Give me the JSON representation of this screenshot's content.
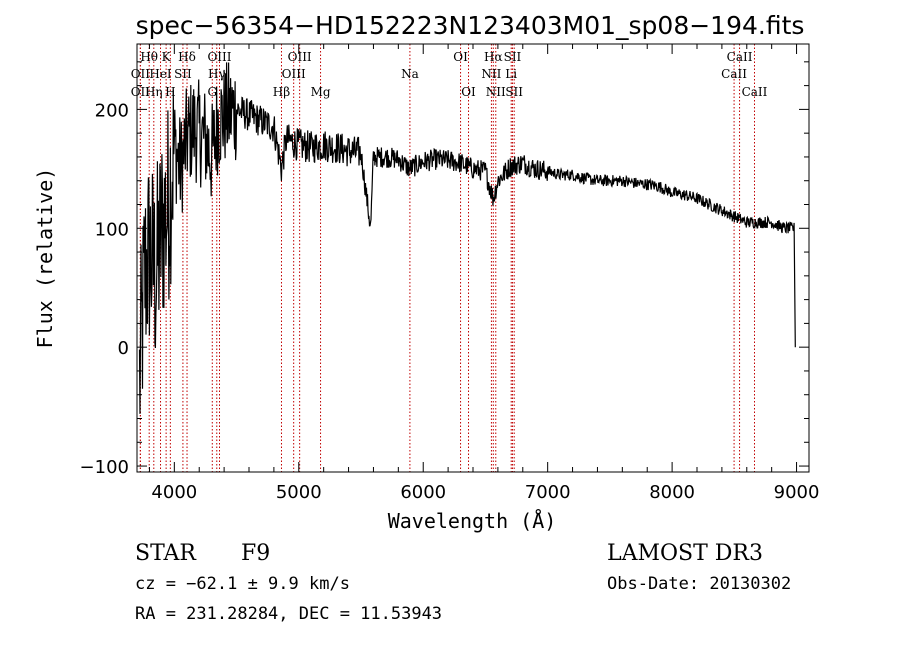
{
  "chart_data": {
    "type": "line",
    "title": "spec−56354−HD152223N123403M01_sp08−194.fits",
    "xlabel": "Wavelength (Å)",
    "ylabel": "Flux (relative)",
    "xlim": [
      3700,
      9100
    ],
    "ylim": [
      -105,
      255
    ],
    "xticks": [
      4000,
      5000,
      6000,
      7000,
      8000,
      9000
    ],
    "yticks": [
      -100,
      0,
      100,
      200
    ],
    "x_minor_step": 200,
    "y_minor_step": 20,
    "series": [
      {
        "name": "spectrum",
        "x": [
          3720,
          3760,
          3800,
          3850,
          3900,
          3950,
          4000,
          4050,
          4100,
          4150,
          4200,
          4250,
          4300,
          4350,
          4400,
          4500,
          4600,
          4700,
          4800,
          4861,
          4900,
          5000,
          5100,
          5200,
          5300,
          5400,
          5500,
          5577,
          5600,
          5700,
          5800,
          5890,
          6000,
          6100,
          6200,
          6300,
          6400,
          6500,
          6563,
          6600,
          6700,
          6800,
          6900,
          7000,
          7100,
          7200,
          7300,
          7400,
          7500,
          7600,
          7700,
          7800,
          7900,
          8000,
          8100,
          8200,
          8300,
          8400,
          8500,
          8600,
          8700,
          8800,
          8900,
          8980,
          8990
        ],
        "y": [
          -30,
          60,
          80,
          60,
          100,
          120,
          170,
          150,
          175,
          185,
          180,
          175,
          160,
          190,
          195,
          200,
          195,
          190,
          185,
          150,
          175,
          170,
          168,
          170,
          168,
          165,
          163,
          100,
          160,
          160,
          158,
          150,
          156,
          158,
          157,
          155,
          150,
          148,
          125,
          140,
          152,
          155,
          150,
          148,
          145,
          145,
          142,
          140,
          140,
          140,
          138,
          137,
          135,
          130,
          128,
          125,
          120,
          115,
          110,
          105,
          105,
          105,
          100,
          100,
          0
        ]
      }
    ],
    "line_markers": [
      {
        "label": "Hθ",
        "x": 3798,
        "row": 1
      },
      {
        "label": "OII",
        "x": 3727,
        "row": 2
      },
      {
        "label": "OII",
        "x": 3727,
        "row": 3
      },
      {
        "label": "Hη",
        "x": 3835,
        "row": 3
      },
      {
        "label": "HeI",
        "x": 3889,
        "row": 2
      },
      {
        "label": "K",
        "x": 3934,
        "row": 1
      },
      {
        "label": "H",
        "x": 3968,
        "row": 3
      },
      {
        "label": "SII",
        "x": 4069,
        "row": 2
      },
      {
        "label": "Hδ",
        "x": 4102,
        "row": 1
      },
      {
        "label": "OIII",
        "x": 4363,
        "row": 1
      },
      {
        "label": "Hγ",
        "x": 4341,
        "row": 2
      },
      {
        "label": "G",
        "x": 4305,
        "row": 3
      },
      {
        "label": "Hβ",
        "x": 4861,
        "row": 3
      },
      {
        "label": "OIII",
        "x": 4959,
        "row": 2
      },
      {
        "label": "OIII",
        "x": 5007,
        "row": 1
      },
      {
        "label": "Mg",
        "x": 5175,
        "row": 3
      },
      {
        "label": "Na",
        "x": 5893,
        "row": 2
      },
      {
        "label": "OI",
        "x": 6300,
        "row": 1
      },
      {
        "label": "OI",
        "x": 6364,
        "row": 3
      },
      {
        "label": "Hα",
        "x": 6563,
        "row": 1
      },
      {
        "label": "NII",
        "x": 6548,
        "row": 2
      },
      {
        "label": "NII",
        "x": 6583,
        "row": 3
      },
      {
        "label": "SII",
        "x": 6717,
        "row": 1
      },
      {
        "label": "Li",
        "x": 6707,
        "row": 2
      },
      {
        "label": "SII",
        "x": 6731,
        "row": 3
      },
      {
        "label": "CaII",
        "x": 8542,
        "row": 1
      },
      {
        "label": "CaII",
        "x": 8498,
        "row": 2
      },
      {
        "label": "CaII",
        "x": 8662,
        "row": 3
      }
    ],
    "annotations": {
      "class": "STAR",
      "subclass": "F9",
      "survey": "LAMOST DR3",
      "cz": "cz = −62.1 ± 9.9 km/s",
      "obs_date": "Obs-Date: 20130302",
      "radec": "RA = 231.28284, DEC =  11.53943"
    }
  }
}
